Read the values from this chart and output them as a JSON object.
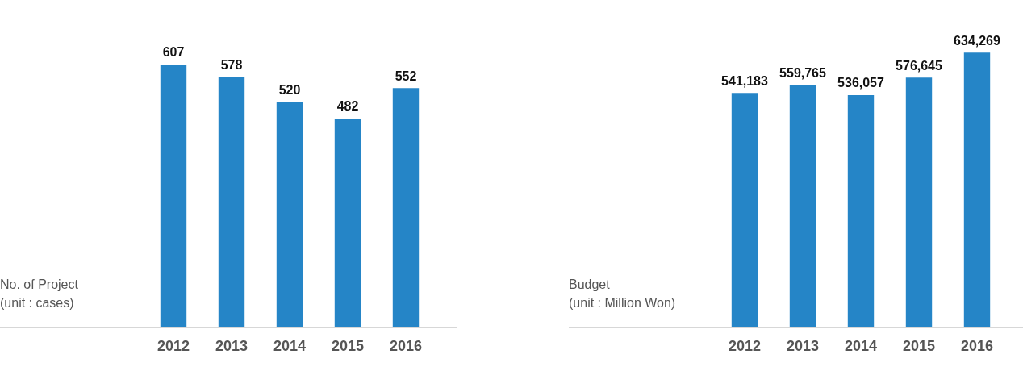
{
  "chart_data": [
    {
      "type": "bar",
      "ylabel": "No. of Project\n(unit : cases)",
      "categories": [
        "2012",
        "2013",
        "2014",
        "2015",
        "2016"
      ],
      "values": [
        607,
        578,
        520,
        482,
        552
      ],
      "color": "#2585c7",
      "data_labels": true,
      "tick_labels": "x",
      "grid": false,
      "legend": false
    },
    {
      "type": "bar",
      "ylabel": "Budget\n(unit : Million Won)",
      "categories": [
        "2012",
        "2013",
        "2014",
        "2015",
        "2016"
      ],
      "values": [
        541183,
        559765,
        536057,
        576645,
        634269
      ],
      "value_labels": [
        "541,183",
        "559,765",
        "536,057",
        "576,645",
        "634,269"
      ],
      "color": "#2585c7",
      "tick_labels": "x",
      "grid": false,
      "legend": false
    }
  ]
}
